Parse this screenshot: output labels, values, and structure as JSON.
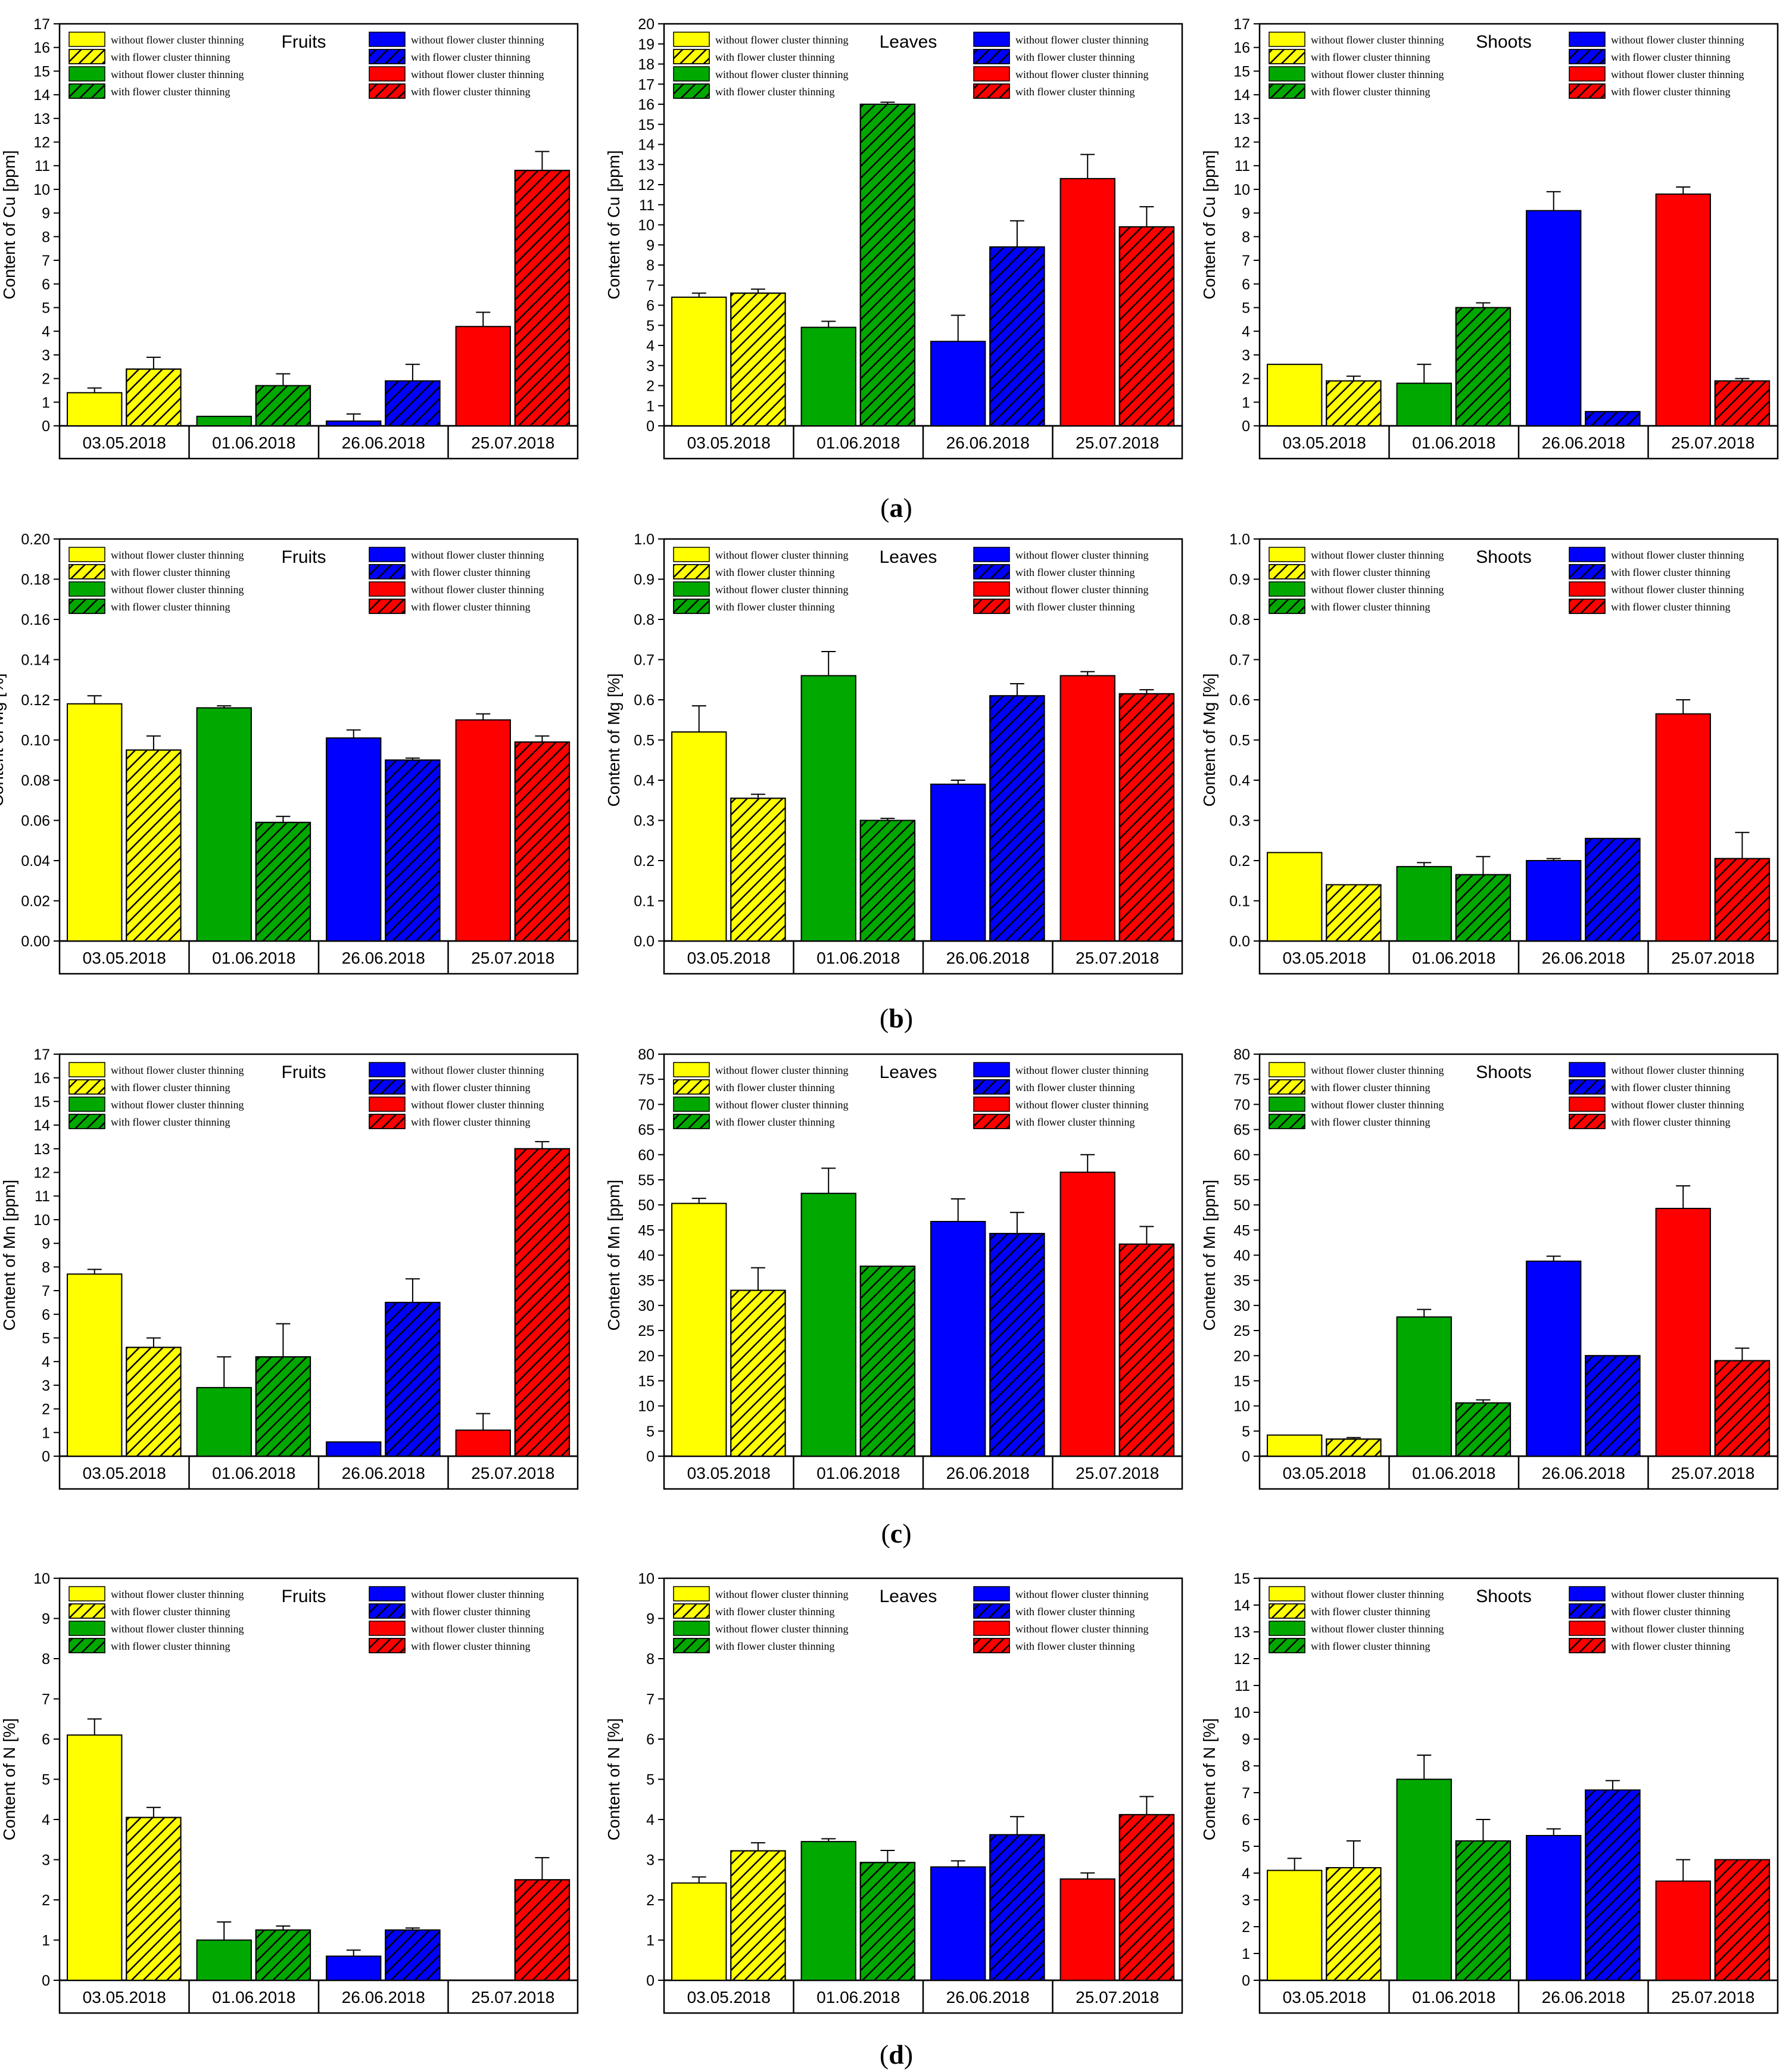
{
  "colors": {
    "yellow": "#ffff00",
    "green": "#00a800",
    "blue": "#0000ff",
    "red": "#ff0000",
    "axis": "#000000"
  },
  "legend_labels": {
    "without": "without flower cluster thinning",
    "with": "with flower cluster thinning"
  },
  "chart_data": [
    {
      "id": "cu-fruits",
      "row": "a",
      "type": "bar",
      "title": "Fruits",
      "ylabel": "Content of Cu [ppm]",
      "ylim": [
        0,
        17
      ],
      "ystep": 1,
      "ydecimals": 0,
      "categories": [
        "03.05.2018",
        "01.06.2018",
        "26.06.2018",
        "25.07.2018"
      ],
      "series": [
        {
          "name": "without flower cluster thinning",
          "values": [
            1.4,
            0.4,
            0.2,
            4.2
          ],
          "errors": [
            0.2,
            0,
            0.3,
            0.6
          ]
        },
        {
          "name": "with flower cluster thinning",
          "values": [
            2.4,
            1.7,
            1.9,
            10.8
          ],
          "errors": [
            0.5,
            0.5,
            0.7,
            0.8
          ]
        }
      ]
    },
    {
      "id": "cu-leaves",
      "row": "a",
      "type": "bar",
      "title": "Leaves",
      "ylabel": "Content of Cu [ppm]",
      "ylim": [
        0,
        20
      ],
      "ystep": 1,
      "ydecimals": 0,
      "categories": [
        "03.05.2018",
        "01.06.2018",
        "26.06.2018",
        "25.07.2018"
      ],
      "series": [
        {
          "name": "without flower cluster thinning",
          "values": [
            6.4,
            4.9,
            4.2,
            12.3
          ],
          "errors": [
            0.2,
            0.3,
            1.3,
            1.2
          ]
        },
        {
          "name": "with flower cluster thinning",
          "values": [
            6.6,
            16.0,
            8.9,
            9.9
          ],
          "errors": [
            0.2,
            0.1,
            1.3,
            1.0
          ]
        }
      ]
    },
    {
      "id": "cu-shoots",
      "row": "a",
      "type": "bar",
      "title": "Shoots",
      "ylabel": "Content of Cu [ppm]",
      "ylim": [
        0,
        17
      ],
      "ystep": 1,
      "ydecimals": 0,
      "categories": [
        "03.05.2018",
        "01.06.2018",
        "26.06.2018",
        "25.07.2018"
      ],
      "series": [
        {
          "name": "without flower cluster thinning",
          "values": [
            2.6,
            1.8,
            9.1,
            9.8
          ],
          "errors": [
            0,
            0.8,
            0.8,
            0.3
          ]
        },
        {
          "name": "with flower cluster thinning",
          "values": [
            1.9,
            5.0,
            0.6,
            1.9
          ],
          "errors": [
            0.2,
            0.2,
            0,
            0.1
          ]
        }
      ]
    },
    {
      "id": "mg-fruits",
      "row": "b",
      "type": "bar",
      "title": "Fruits",
      "ylabel": "Content of Mg [%]",
      "ylim": [
        0,
        0.2
      ],
      "ystep": 0.02,
      "ydecimals": 2,
      "categories": [
        "03.05.2018",
        "01.06.2018",
        "26.06.2018",
        "25.07.2018"
      ],
      "series": [
        {
          "name": "without flower cluster thinning",
          "values": [
            0.118,
            0.116,
            0.101,
            0.11
          ],
          "errors": [
            0.004,
            0.001,
            0.004,
            0.003
          ]
        },
        {
          "name": "with flower cluster thinning",
          "values": [
            0.095,
            0.059,
            0.09,
            0.099
          ],
          "errors": [
            0.007,
            0.003,
            0.001,
            0.003
          ]
        }
      ]
    },
    {
      "id": "mg-leaves",
      "row": "b",
      "type": "bar",
      "title": "Leaves",
      "ylabel": "Content of Mg [%]",
      "ylim": [
        0,
        1.0
      ],
      "ystep": 0.1,
      "ydecimals": 1,
      "categories": [
        "03.05.2018",
        "01.06.2018",
        "26.06.2018",
        "25.07.2018"
      ],
      "series": [
        {
          "name": "without flower cluster thinning",
          "values": [
            0.52,
            0.66,
            0.39,
            0.66
          ],
          "errors": [
            0.065,
            0.06,
            0.01,
            0.01
          ]
        },
        {
          "name": "with flower cluster thinning",
          "values": [
            0.355,
            0.3,
            0.61,
            0.615
          ],
          "errors": [
            0.01,
            0.005,
            0.03,
            0.01
          ]
        }
      ]
    },
    {
      "id": "mg-shoots",
      "row": "b",
      "type": "bar",
      "title": "Shoots",
      "ylabel": "Content of Mg [%]",
      "ylim": [
        0,
        1.0
      ],
      "ystep": 0.1,
      "ydecimals": 1,
      "categories": [
        "03.05.2018",
        "01.06.2018",
        "26.06.2018",
        "25.07.2018"
      ],
      "series": [
        {
          "name": "without flower cluster thinning",
          "values": [
            0.22,
            0.185,
            0.2,
            0.565
          ],
          "errors": [
            0,
            0.01,
            0.005,
            0.035
          ]
        },
        {
          "name": "with flower cluster thinning",
          "values": [
            0.14,
            0.165,
            0.255,
            0.205
          ],
          "errors": [
            0,
            0.045,
            0,
            0.065
          ]
        }
      ]
    },
    {
      "id": "mn-fruits",
      "row": "c",
      "type": "bar",
      "title": "Fruits",
      "ylabel": "Content of Mn [ppm]",
      "ylim": [
        0,
        17
      ],
      "ystep": 1,
      "ydecimals": 0,
      "categories": [
        "03.05.2018",
        "01.06.2018",
        "26.06.2018",
        "25.07.2018"
      ],
      "series": [
        {
          "name": "without flower cluster thinning",
          "values": [
            7.7,
            2.9,
            0.6,
            1.1
          ],
          "errors": [
            0.2,
            1.3,
            0,
            0.7
          ]
        },
        {
          "name": "with flower cluster thinning",
          "values": [
            4.6,
            4.2,
            6.5,
            13.0
          ],
          "errors": [
            0.4,
            1.4,
            1.0,
            0.3
          ]
        }
      ]
    },
    {
      "id": "mn-leaves",
      "row": "c",
      "type": "bar",
      "title": "Leaves",
      "ylabel": "Content of Mn [ppm]",
      "ylim": [
        0,
        80
      ],
      "ystep": 5,
      "ydecimals": 0,
      "categories": [
        "03.05.2018",
        "01.06.2018",
        "26.06.2018",
        "25.07.2018"
      ],
      "series": [
        {
          "name": "without flower cluster thinning",
          "values": [
            50.3,
            52.3,
            46.7,
            56.5
          ],
          "errors": [
            1.0,
            5.0,
            4.5,
            3.5
          ]
        },
        {
          "name": "with flower cluster thinning",
          "values": [
            33.0,
            37.8,
            44.3,
            42.2
          ],
          "errors": [
            4.5,
            0,
            4.2,
            3.5
          ]
        }
      ]
    },
    {
      "id": "mn-shoots",
      "row": "c",
      "type": "bar",
      "title": "Shoots",
      "ylabel": "Content of Mn [ppm]",
      "ylim": [
        0,
        80
      ],
      "ystep": 5,
      "ydecimals": 0,
      "categories": [
        "03.05.2018",
        "01.06.2018",
        "26.06.2018",
        "25.07.2018"
      ],
      "series": [
        {
          "name": "without flower cluster thinning",
          "values": [
            4.2,
            27.7,
            38.8,
            49.3
          ],
          "errors": [
            0,
            1.5,
            1.0,
            4.5
          ]
        },
        {
          "name": "with flower cluster thinning",
          "values": [
            3.4,
            10.6,
            20.0,
            19.0
          ],
          "errors": [
            0.3,
            0.6,
            0,
            2.5
          ]
        }
      ]
    },
    {
      "id": "n-fruits",
      "row": "d",
      "type": "bar",
      "title": "Fruits",
      "ylabel": "Content of N [%]",
      "ylim": [
        0,
        10
      ],
      "ystep": 1,
      "ydecimals": 0,
      "categories": [
        "03.05.2018",
        "01.06.2018",
        "26.06.2018",
        "25.07.2018"
      ],
      "series": [
        {
          "name": "without flower cluster thinning",
          "values": [
            6.1,
            1.0,
            0.6,
            0
          ],
          "errors": [
            0.4,
            0.45,
            0.15,
            0
          ]
        },
        {
          "name": "with flower cluster thinning",
          "values": [
            4.05,
            1.25,
            1.25,
            2.5
          ],
          "errors": [
            0.25,
            0.1,
            0.05,
            0.55
          ]
        }
      ]
    },
    {
      "id": "n-leaves",
      "row": "d",
      "type": "bar",
      "title": "Leaves",
      "ylabel": "Content of N [%]",
      "ylim": [
        0,
        10
      ],
      "ystep": 1,
      "ydecimals": 0,
      "categories": [
        "03.05.2018",
        "01.06.2018",
        "26.06.2018",
        "25.07.2018"
      ],
      "series": [
        {
          "name": "without flower cluster thinning",
          "values": [
            2.42,
            3.45,
            2.82,
            2.52
          ],
          "errors": [
            0.15,
            0.07,
            0.15,
            0.15
          ]
        },
        {
          "name": "with flower cluster thinning",
          "values": [
            3.22,
            2.93,
            3.62,
            4.12
          ],
          "errors": [
            0.2,
            0.3,
            0.45,
            0.45
          ]
        }
      ]
    },
    {
      "id": "n-shoots",
      "row": "d",
      "type": "bar",
      "title": "Shoots",
      "ylabel": "Content of N [%]",
      "ylim": [
        0,
        15
      ],
      "ystep": 1,
      "ydecimals": 0,
      "categories": [
        "03.05.2018",
        "01.06.2018",
        "26.06.2018",
        "25.07.2018"
      ],
      "series": [
        {
          "name": "without flower cluster thinning",
          "values": [
            4.1,
            7.5,
            5.4,
            3.7
          ],
          "errors": [
            0.45,
            0.9,
            0.25,
            0.8
          ]
        },
        {
          "name": "with flower cluster thinning",
          "values": [
            4.2,
            5.2,
            7.1,
            4.5
          ],
          "errors": [
            1.0,
            0.8,
            0.35,
            0
          ]
        }
      ]
    }
  ],
  "row_labels": [
    "a",
    "b",
    "c",
    "d"
  ]
}
